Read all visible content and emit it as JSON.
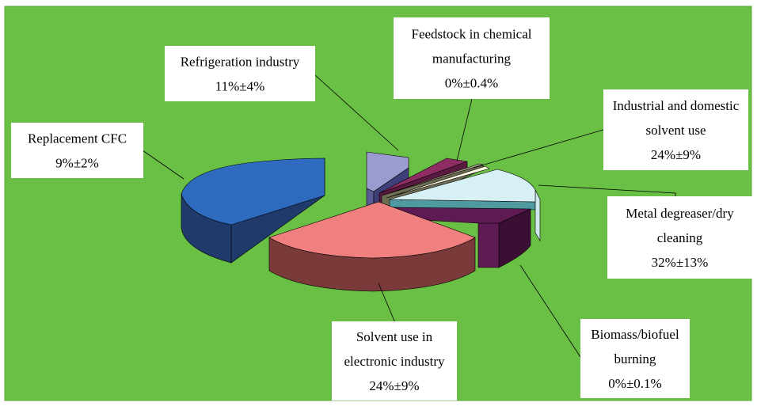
{
  "chart_data": {
    "type": "pie",
    "style": "exploded 3d pie",
    "background_color": "#6abf45",
    "slices": [
      {
        "label_lines": [
          "Replacement CFC",
          "9%±2%"
        ],
        "value": 9,
        "uncertainty": 2,
        "top_color": "#2e6bbf",
        "side_color": "#1f3a6b"
      },
      {
        "label_lines": [
          "Refrigeration industry",
          "11%±4%"
        ],
        "value": 11,
        "uncertainty": 4,
        "top_color": "#9b9bcf",
        "side_color": "#5a5a96"
      },
      {
        "label_lines": [
          "Feedstock in chemical",
          "manufacturing",
          "0%±0.4%"
        ],
        "value": 0,
        "uncertainty": 0.4,
        "top_color": "#8e2d64",
        "side_color": "#5a1a40"
      },
      {
        "label_lines": [
          "Industrial and domestic",
          "solvent use",
          "24%±9%"
        ],
        "value": 24,
        "uncertainty": 9,
        "top_color": "#a7a58a",
        "side_color": "#6e6c55"
      },
      {
        "label_lines": [
          "Metal degreaser/dry",
          "cleaning",
          "32%±13%"
        ],
        "value": 32,
        "uncertainty": 13,
        "top_color": "#d6f0f4",
        "side_color": "#4e9aa0"
      },
      {
        "label_lines": [
          "Biomass/biofuel",
          "burning",
          "0%±0.1%"
        ],
        "value": 0,
        "uncertainty": 0.1,
        "top_color": "#5e1a52",
        "side_color": "#3a0f33"
      },
      {
        "label_lines": [
          "Solvent use in",
          "electronic industry",
          "24%±9%"
        ],
        "value": 24,
        "uncertainty": 9,
        "top_color": "#f08080",
        "side_color": "#7a3a3a"
      }
    ]
  }
}
